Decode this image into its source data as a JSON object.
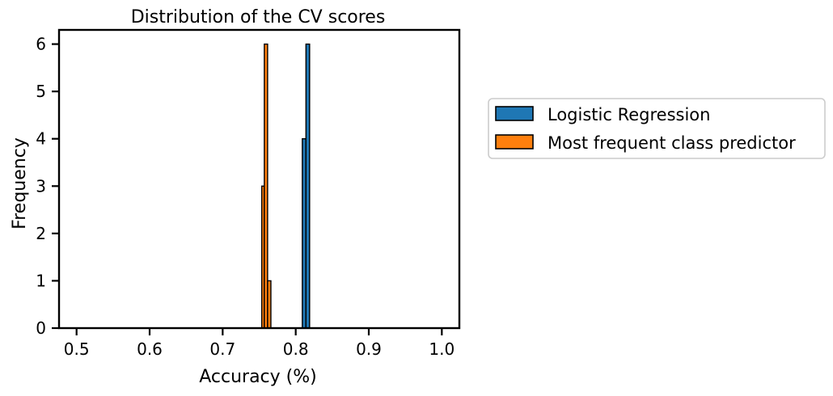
{
  "chart_data": {
    "type": "bar",
    "title": "Distribution of the CV scores",
    "xlabel": "Accuracy (%)",
    "ylabel": "Frequency",
    "xlim": [
      0.476,
      1.024
    ],
    "ylim": [
      0,
      6.3
    ],
    "xticks": [
      0.5,
      0.6,
      0.7,
      0.8,
      0.9,
      1.0
    ],
    "xtick_labels": [
      "0.5",
      "0.6",
      "0.7",
      "0.8",
      "0.9",
      "1.0"
    ],
    "yticks": [
      0,
      1,
      2,
      3,
      4,
      5,
      6
    ],
    "ytick_labels": [
      "0",
      "1",
      "2",
      "3",
      "4",
      "5",
      "6"
    ],
    "grid": false,
    "legend_placement": "outside-right",
    "series": [
      {
        "name": "Logistic Regression",
        "color": "#1f77b4",
        "bins": [
          {
            "x0": 0.809,
            "x1": 0.814,
            "count": 4
          },
          {
            "x0": 0.814,
            "x1": 0.819,
            "count": 6
          }
        ]
      },
      {
        "name": "Most frequent class predictor",
        "color": "#ff7f0e",
        "bins": [
          {
            "x0": 0.7535,
            "x1": 0.757,
            "count": 3
          },
          {
            "x0": 0.757,
            "x1": 0.7615,
            "count": 6
          },
          {
            "x0": 0.7615,
            "x1": 0.766,
            "count": 1
          }
        ]
      }
    ]
  }
}
